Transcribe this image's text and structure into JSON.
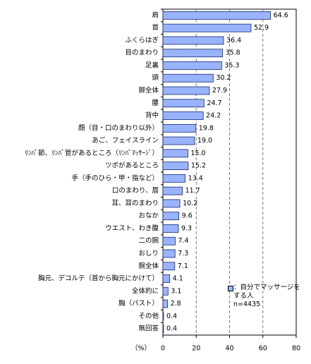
{
  "chart_data": {
    "type": "barh",
    "categories": [
      "肩",
      "首",
      "ふくらはぎ",
      "目のまわり",
      "足裏",
      "頭",
      "脚全体",
      "腰",
      "背中",
      "顔（目・口のまわり以外）",
      "あご、フェイスライン",
      "ﾘﾝﾊﾟ節、ﾘﾝﾊﾟ管があるところ（ﾘﾝﾊﾟﾏｯｻｰｼﾞ）",
      "ツボがあるところ",
      "手（手のひら・甲・指など）",
      "口のまわり、唇",
      "耳、耳のまわり",
      "おなか",
      "ウエスト、わき腹",
      "二の腕",
      "おしり",
      "腕全体",
      "胸元、デコルテ（首から胸元にかけて）",
      "全体的に",
      "胸（バスト）",
      "その他",
      "無回答"
    ],
    "series": [
      {
        "name": "：自分でマッサージをする人",
        "color": "#99b3ff",
        "values": [
          64.6,
          52.9,
          36.4,
          35.8,
          35.3,
          30.2,
          27.9,
          24.7,
          24.2,
          19.8,
          19.0,
          15.0,
          15.2,
          13.4,
          11.7,
          10.2,
          9.6,
          9.3,
          7.4,
          7.3,
          7.1,
          4.1,
          3.1,
          2.8,
          0.4,
          0.4
        ],
        "value_labels": [
          "64.6",
          "52.9",
          "36.4",
          "35.8",
          "35.3",
          "30.2",
          "27.9",
          "24.7",
          "24.2",
          "19.8",
          "19.0",
          "15.0",
          "15.2",
          "13.4",
          "11.7",
          "10.2",
          "9.6",
          "9.3",
          "7.4",
          "7.3",
          "7.1",
          "4.1",
          "3.1",
          "2.8",
          "0.4",
          "0.4"
        ]
      }
    ],
    "note": "n=4435",
    "xlabel": "（%）",
    "xlim": [
      0,
      80
    ],
    "xticks": [
      0,
      20,
      40,
      60,
      80
    ],
    "grid": true
  }
}
